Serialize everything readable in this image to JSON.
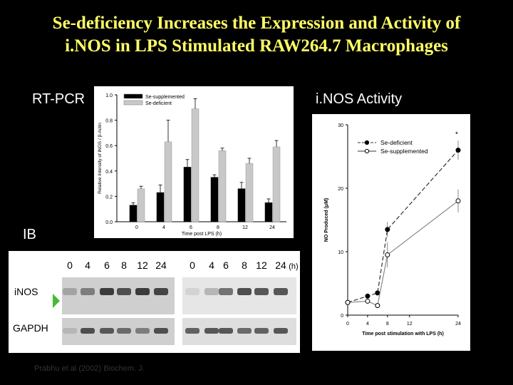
{
  "slide": {
    "title_line1": "Se-deficiency Increases the Expression and Activity of",
    "title_line2": "i.NOS in LPS Stimulated RAW264.7 Macrophages",
    "rtpcr_label": "RT-PCR",
    "activity_label": "i.NOS Activity",
    "ib_label": "IB",
    "citation": "Prabhu et al (2002) Biochem. J.",
    "colors": {
      "background": "#000000",
      "title": "#ffff66",
      "label": "#ffffff"
    }
  },
  "chart_data": [
    {
      "type": "bar",
      "ylabel": "Relative Intensity of iNOS / β-Actin",
      "xlabel": "Time post LPS (h)",
      "ylim": [
        0,
        1.0
      ],
      "yticks": [
        "0.0",
        "0.2",
        "0.4",
        "0.6",
        "0.8",
        "1.0"
      ],
      "categories": [
        "0",
        "4",
        "6",
        "8",
        "12",
        "24"
      ],
      "legend_position": "top-left",
      "series": [
        {
          "name": "Se-supplemented",
          "color": "#000000",
          "values": [
            0.13,
            0.23,
            0.43,
            0.35,
            0.26,
            0.15
          ],
          "errors": [
            0.02,
            0.06,
            0.06,
            0.02,
            0.05,
            0.03
          ]
        },
        {
          "name": "Se-deficient",
          "color": "#c8c8c8",
          "values": [
            0.26,
            0.63,
            0.89,
            0.56,
            0.46,
            0.59
          ],
          "errors": [
            0.02,
            0.17,
            0.08,
            0.02,
            0.04,
            0.05
          ]
        }
      ]
    },
    {
      "type": "line",
      "ylabel": "NO Produced (μM)",
      "xlabel": "Time post stimulation with LPS (h)",
      "ylim": [
        0,
        30
      ],
      "yticks": [
        "0",
        "10",
        "20",
        "30"
      ],
      "xticks": [
        "0",
        "4",
        "8",
        "12",
        "24"
      ],
      "legend_position": "top-left",
      "annotation": "*",
      "series": [
        {
          "name": "Se-deficient",
          "marker": "filled-circle",
          "x": [
            0,
            4,
            6,
            8,
            24
          ],
          "y": [
            2.0,
            3.0,
            3.5,
            13.5,
            26.0
          ],
          "errors": [
            0.3,
            0.3,
            0.3,
            1.2,
            1.5
          ]
        },
        {
          "name": "Se-supplemented",
          "marker": "open-circle",
          "x": [
            0,
            4,
            6,
            8,
            24
          ],
          "y": [
            2.0,
            2.2,
            1.5,
            9.5,
            18.0
          ],
          "errors": [
            0.3,
            0.3,
            0.3,
            2.0,
            1.8
          ]
        }
      ]
    }
  ],
  "blot": {
    "lanes_left": [
      "0",
      "4",
      "6",
      "8",
      "12",
      "24"
    ],
    "lanes_right": [
      "0",
      "4",
      "6",
      "8",
      "12",
      "24",
      "(h)"
    ],
    "rows": [
      "iNOS",
      "GAPDH"
    ],
    "inos_intensity_left": [
      0.3,
      0.5,
      0.85,
      0.75,
      0.85,
      0.8
    ],
    "inos_intensity_right": [
      0.05,
      0.2,
      0.55,
      0.75,
      0.7,
      0.7
    ],
    "gapdh_intensity_left": [
      0.2,
      0.75,
      0.7,
      0.6,
      0.5,
      0.75
    ],
    "gapdh_intensity_right": [
      0.65,
      0.7,
      0.7,
      0.6,
      0.65,
      0.7
    ]
  }
}
